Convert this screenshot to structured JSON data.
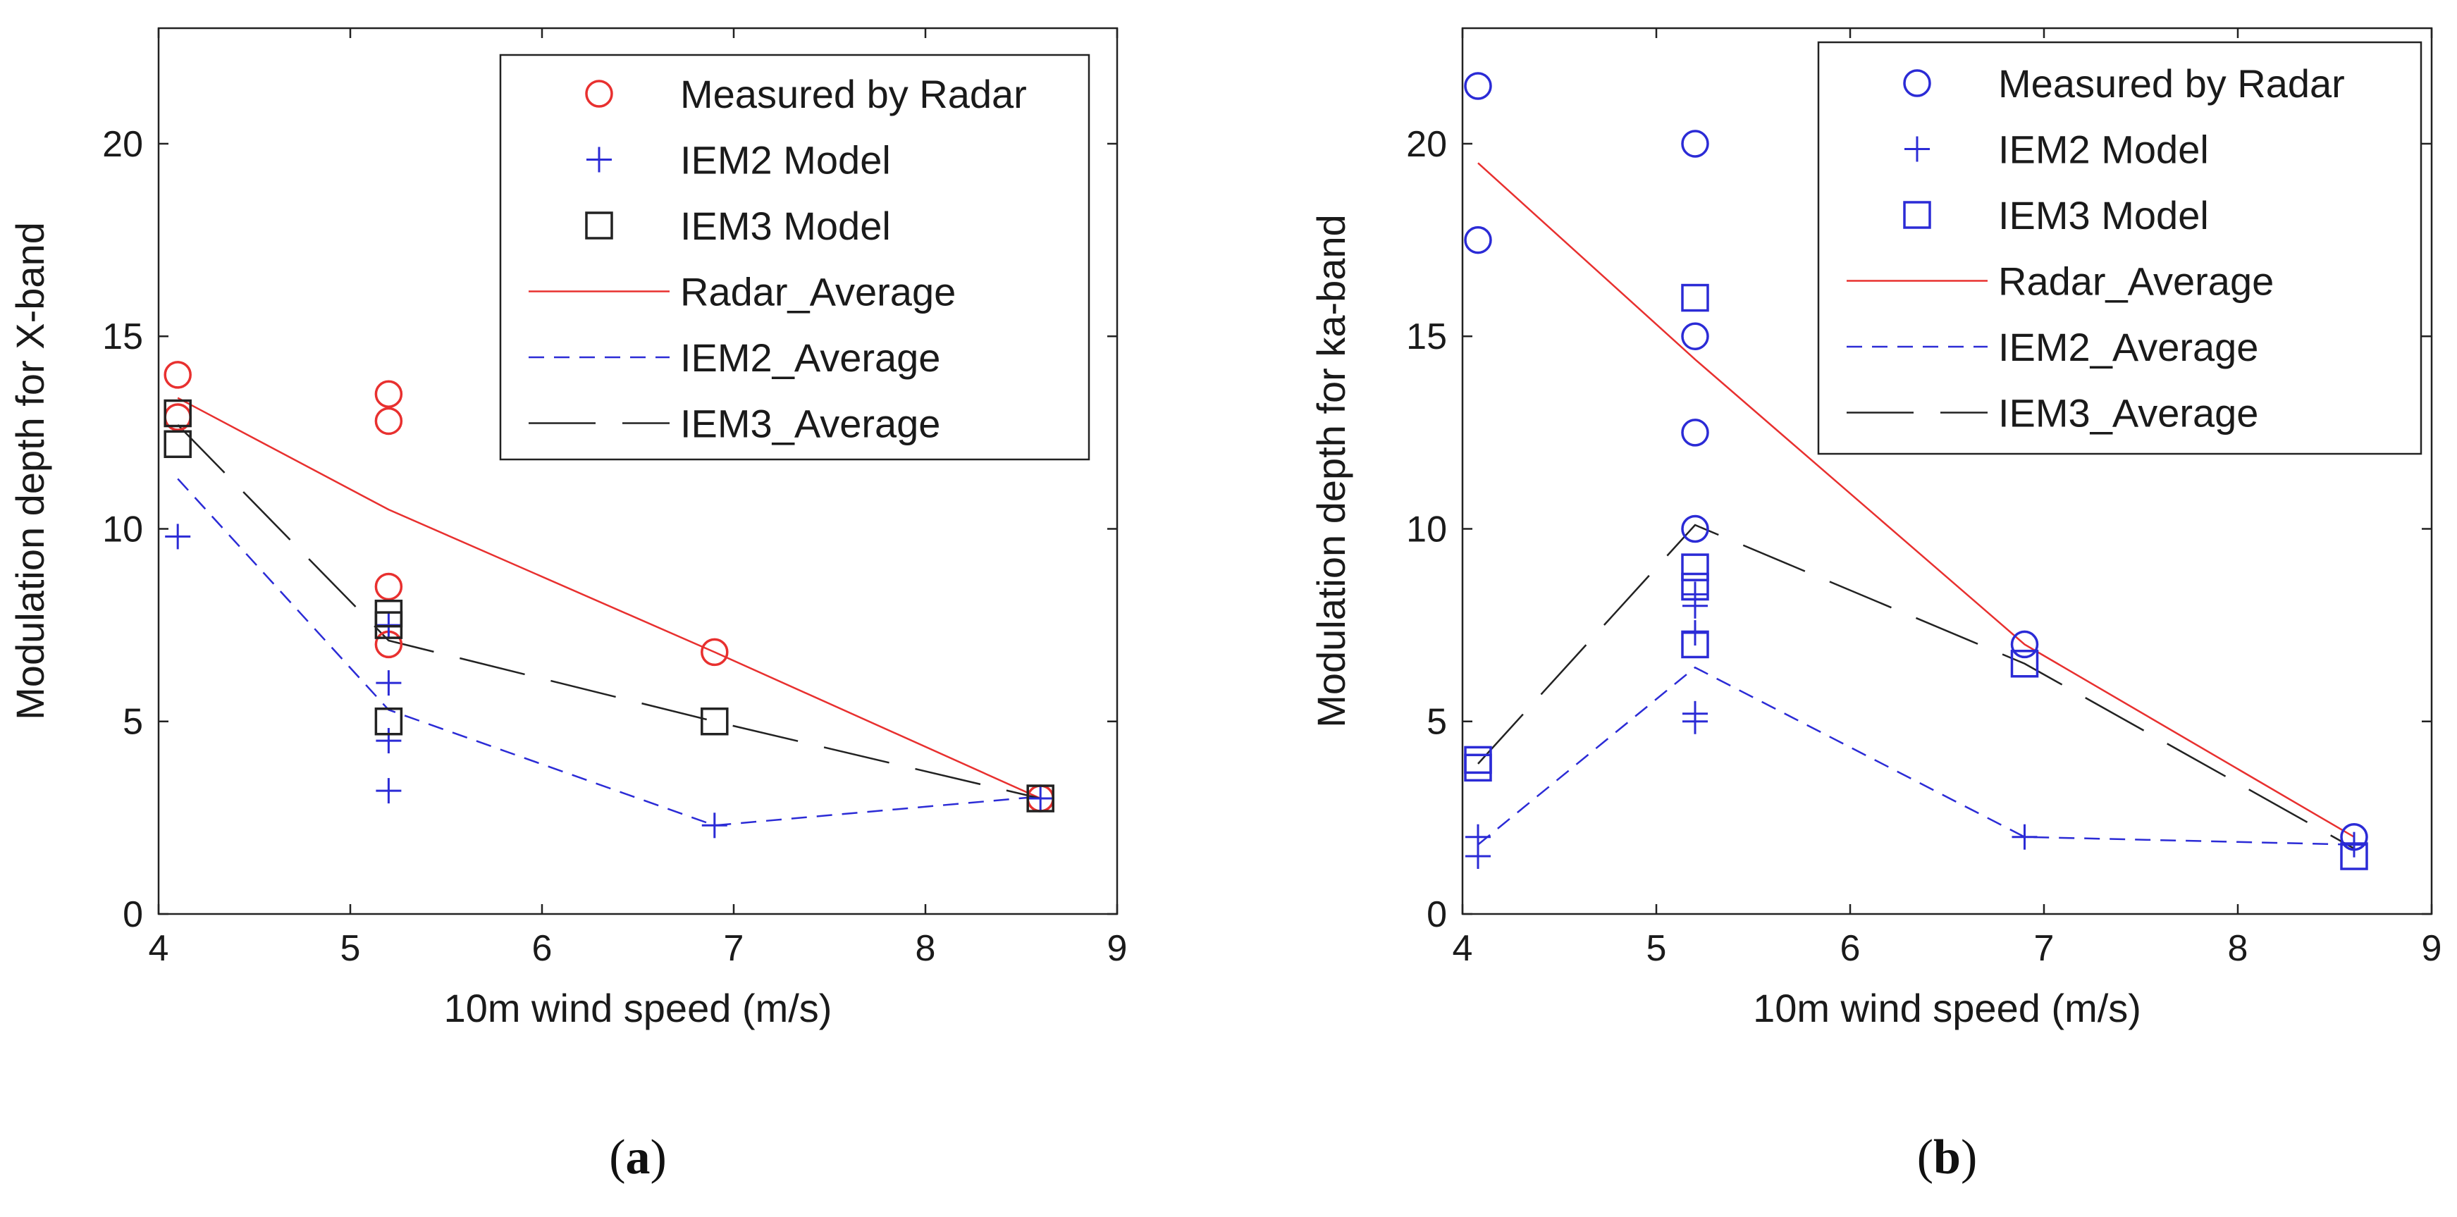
{
  "chart_data": [
    {
      "type": "scatter",
      "title": "",
      "xlabel": "10m wind speed (m/s)",
      "ylabel": "Modulation depth for X-band",
      "xlim": [
        4,
        9
      ],
      "ylim": [
        0,
        23
      ],
      "xticks": [
        "4",
        "5",
        "6",
        "7",
        "8",
        "9"
      ],
      "yticks": [
        "0",
        "5",
        "10",
        "15",
        "20"
      ],
      "xtick_values": [
        4,
        5,
        6,
        7,
        8,
        9
      ],
      "ytick_values": [
        0,
        5,
        10,
        15,
        20
      ],
      "grid": false,
      "legend_position": "top-right",
      "caption": {
        "open": "(",
        "letter": "a",
        "close": ")"
      },
      "series": [
        {
          "name": "Measured by Radar",
          "kind": "marker",
          "marker": "circle",
          "color": "#e8302f",
          "points": [
            [
              4.1,
              14.0
            ],
            [
              4.1,
              12.9
            ],
            [
              5.2,
              13.5
            ],
            [
              5.2,
              12.8
            ],
            [
              5.2,
              8.5
            ],
            [
              5.2,
              7.0
            ],
            [
              6.9,
              6.8
            ],
            [
              8.6,
              3.0
            ]
          ]
        },
        {
          "name": "IEM2 Model",
          "kind": "marker",
          "marker": "plus",
          "color": "#2b2bd6",
          "points": [
            [
              4.1,
              9.8
            ],
            [
              5.2,
              7.5
            ],
            [
              5.2,
              6.0
            ],
            [
              5.2,
              4.5
            ],
            [
              5.2,
              3.2
            ],
            [
              6.9,
              2.3
            ],
            [
              8.6,
              3.0
            ]
          ]
        },
        {
          "name": "IEM3 Model",
          "kind": "marker",
          "marker": "square",
          "color": "#222222",
          "points": [
            [
              4.1,
              13.0
            ],
            [
              4.1,
              12.2
            ],
            [
              5.2,
              7.8
            ],
            [
              5.2,
              7.5
            ],
            [
              5.2,
              5.0
            ],
            [
              6.9,
              5.0
            ],
            [
              8.6,
              3.0
            ]
          ]
        },
        {
          "name": "Radar_Average",
          "kind": "line",
          "dash": "solid",
          "color": "#e8302f",
          "points": [
            [
              4.1,
              13.4
            ],
            [
              5.2,
              10.5
            ],
            [
              6.9,
              6.8
            ],
            [
              8.6,
              3.0
            ]
          ]
        },
        {
          "name": "IEM2_Average",
          "kind": "line",
          "dash": "short",
          "color": "#2b2bd6",
          "points": [
            [
              4.1,
              11.3
            ],
            [
              5.2,
              5.3
            ],
            [
              6.9,
              2.3
            ],
            [
              8.6,
              3.05
            ]
          ]
        },
        {
          "name": "IEM3_Average",
          "kind": "line",
          "dash": "long",
          "color": "#222222",
          "points": [
            [
              4.1,
              12.7
            ],
            [
              5.2,
              7.1
            ],
            [
              6.9,
              5.0
            ],
            [
              8.6,
              3.0
            ]
          ]
        }
      ]
    },
    {
      "type": "scatter",
      "title": "",
      "xlabel": "10m wind speed (m/s)",
      "ylabel": "Modulation depth for ka-band",
      "xlim": [
        4,
        9
      ],
      "ylim": [
        0,
        23
      ],
      "xticks": [
        "4",
        "5",
        "6",
        "7",
        "8",
        "9"
      ],
      "yticks": [
        "0",
        "5",
        "10",
        "15",
        "20"
      ],
      "xtick_values": [
        4,
        5,
        6,
        7,
        8,
        9
      ],
      "ytick_values": [
        0,
        5,
        10,
        15,
        20
      ],
      "grid": false,
      "legend_position": "top-right",
      "caption": {
        "open": "(",
        "letter": "b",
        "close": ")"
      },
      "series": [
        {
          "name": "Measured by Radar",
          "kind": "marker",
          "marker": "circle",
          "color": "#2b2bd6",
          "points": [
            [
              4.08,
              21.5
            ],
            [
              4.08,
              17.5
            ],
            [
              5.2,
              20.0
            ],
            [
              5.2,
              15.0
            ],
            [
              5.2,
              12.5
            ],
            [
              5.2,
              10.0
            ],
            [
              6.9,
              7.0
            ],
            [
              8.6,
              2.0
            ]
          ]
        },
        {
          "name": "IEM2 Model",
          "kind": "marker",
          "marker": "plus",
          "color": "#2b2bd6",
          "points": [
            [
              4.08,
              2.0
            ],
            [
              4.08,
              1.5
            ],
            [
              5.2,
              8.3
            ],
            [
              5.2,
              8.0
            ],
            [
              5.2,
              7.3
            ],
            [
              5.2,
              5.2
            ],
            [
              5.2,
              5.0
            ],
            [
              6.9,
              2.0
            ],
            [
              8.6,
              1.8
            ]
          ]
        },
        {
          "name": "IEM3 Model",
          "kind": "marker",
          "marker": "square",
          "color": "#2b2bd6",
          "points": [
            [
              4.08,
              4.0
            ],
            [
              4.08,
              3.8
            ],
            [
              5.2,
              16.0
            ],
            [
              5.2,
              9.0
            ],
            [
              5.2,
              8.5
            ],
            [
              5.2,
              7.0
            ],
            [
              6.9,
              6.5
            ],
            [
              8.6,
              1.5
            ]
          ]
        },
        {
          "name": "Radar_Average",
          "kind": "line",
          "dash": "solid",
          "color": "#e8302f",
          "points": [
            [
              4.08,
              19.5
            ],
            [
              5.2,
              14.4
            ],
            [
              6.9,
              7.0
            ],
            [
              8.6,
              2.0
            ]
          ]
        },
        {
          "name": "IEM2_Average",
          "kind": "line",
          "dash": "short",
          "color": "#2b2bd6",
          "points": [
            [
              4.08,
              1.8
            ],
            [
              5.2,
              6.4
            ],
            [
              6.9,
              2.0
            ],
            [
              8.6,
              1.8
            ]
          ]
        },
        {
          "name": "IEM3_Average",
          "kind": "line",
          "dash": "long",
          "color": "#222222",
          "points": [
            [
              4.08,
              3.9
            ],
            [
              5.2,
              10.1
            ],
            [
              6.9,
              6.5
            ],
            [
              8.6,
              1.7
            ]
          ]
        }
      ]
    }
  ]
}
